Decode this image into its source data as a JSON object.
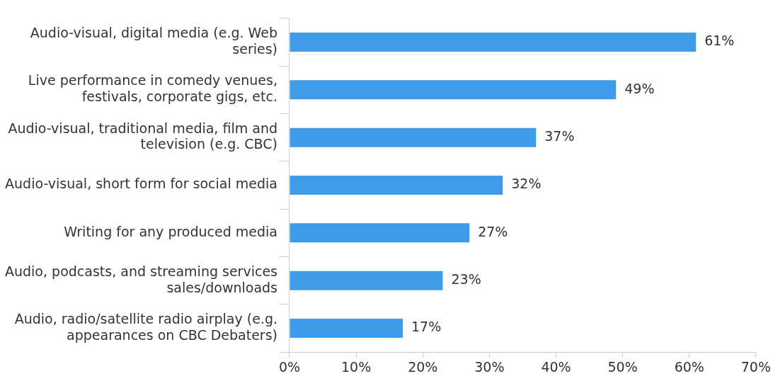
{
  "chart_data": {
    "type": "bar",
    "orientation": "horizontal",
    "categories": [
      "Audio-visual, digital media (e.g. Web series)",
      "Live performance in comedy venues, festivals, corporate gigs, etc.",
      "Audio-visual, traditional media, film and television (e.g. CBC)",
      "Audio-visual, short form for social media",
      "Writing for any produced media",
      "Audio, podcasts, and streaming services sales/downloads",
      "Audio, radio/satellite radio airplay (e.g. appearances on CBC Debaters)"
    ],
    "values": [
      61,
      49,
      37,
      32,
      27,
      23,
      17
    ],
    "value_labels": [
      "61%",
      "49%",
      "37%",
      "32%",
      "27%",
      "23%",
      "17%"
    ],
    "color": "#3d9be9",
    "xlim": [
      0,
      70
    ],
    "xticks": [
      {
        "value": 0,
        "label": "0%"
      },
      {
        "value": 10,
        "label": "10%"
      },
      {
        "value": 20,
        "label": "20%"
      },
      {
        "value": 30,
        "label": "30%"
      },
      {
        "value": 40,
        "label": "40%"
      },
      {
        "value": 50,
        "label": "50%"
      },
      {
        "value": 60,
        "label": "60%"
      },
      {
        "value": 70,
        "label": "70%"
      }
    ],
    "grid": false,
    "legend": false
  }
}
